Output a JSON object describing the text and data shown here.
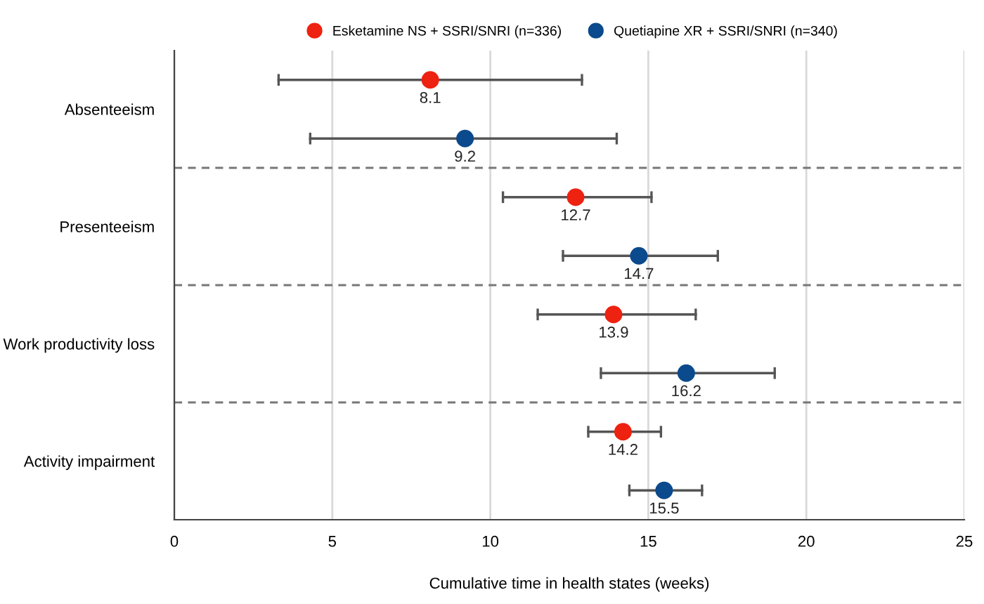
{
  "chart_data": {
    "type": "scatter",
    "orientation": "horizontal",
    "categories": [
      "Absenteeism",
      "Presenteeism",
      "Work productivity loss",
      "Activity impairment"
    ],
    "series": [
      {
        "name": "Esketamine NS + SSRI/SNRI (n=336)",
        "color": "#ee2211",
        "values": [
          8.1,
          12.7,
          13.9,
          14.2
        ],
        "errors": [
          [
            3.3,
            12.9
          ],
          [
            10.4,
            15.1
          ],
          [
            11.5,
            16.5
          ],
          [
            13.1,
            15.4
          ]
        ]
      },
      {
        "name": "Quetiapine XR + SSRI/SNRI (n=340)",
        "color": "#0b4a8c",
        "values": [
          9.2,
          14.7,
          16.2,
          15.5
        ],
        "errors": [
          [
            4.3,
            14.0
          ],
          [
            12.3,
            17.2
          ],
          [
            13.5,
            19.0
          ],
          [
            14.4,
            16.7
          ]
        ]
      }
    ],
    "xlabel": "Cumulative time in health states (weeks)",
    "xlim": [
      0,
      25
    ],
    "xticks": [
      0,
      5,
      10,
      15,
      20,
      25
    ],
    "grid": "x",
    "legend": "top",
    "marker": "circle",
    "data_labels": true
  }
}
